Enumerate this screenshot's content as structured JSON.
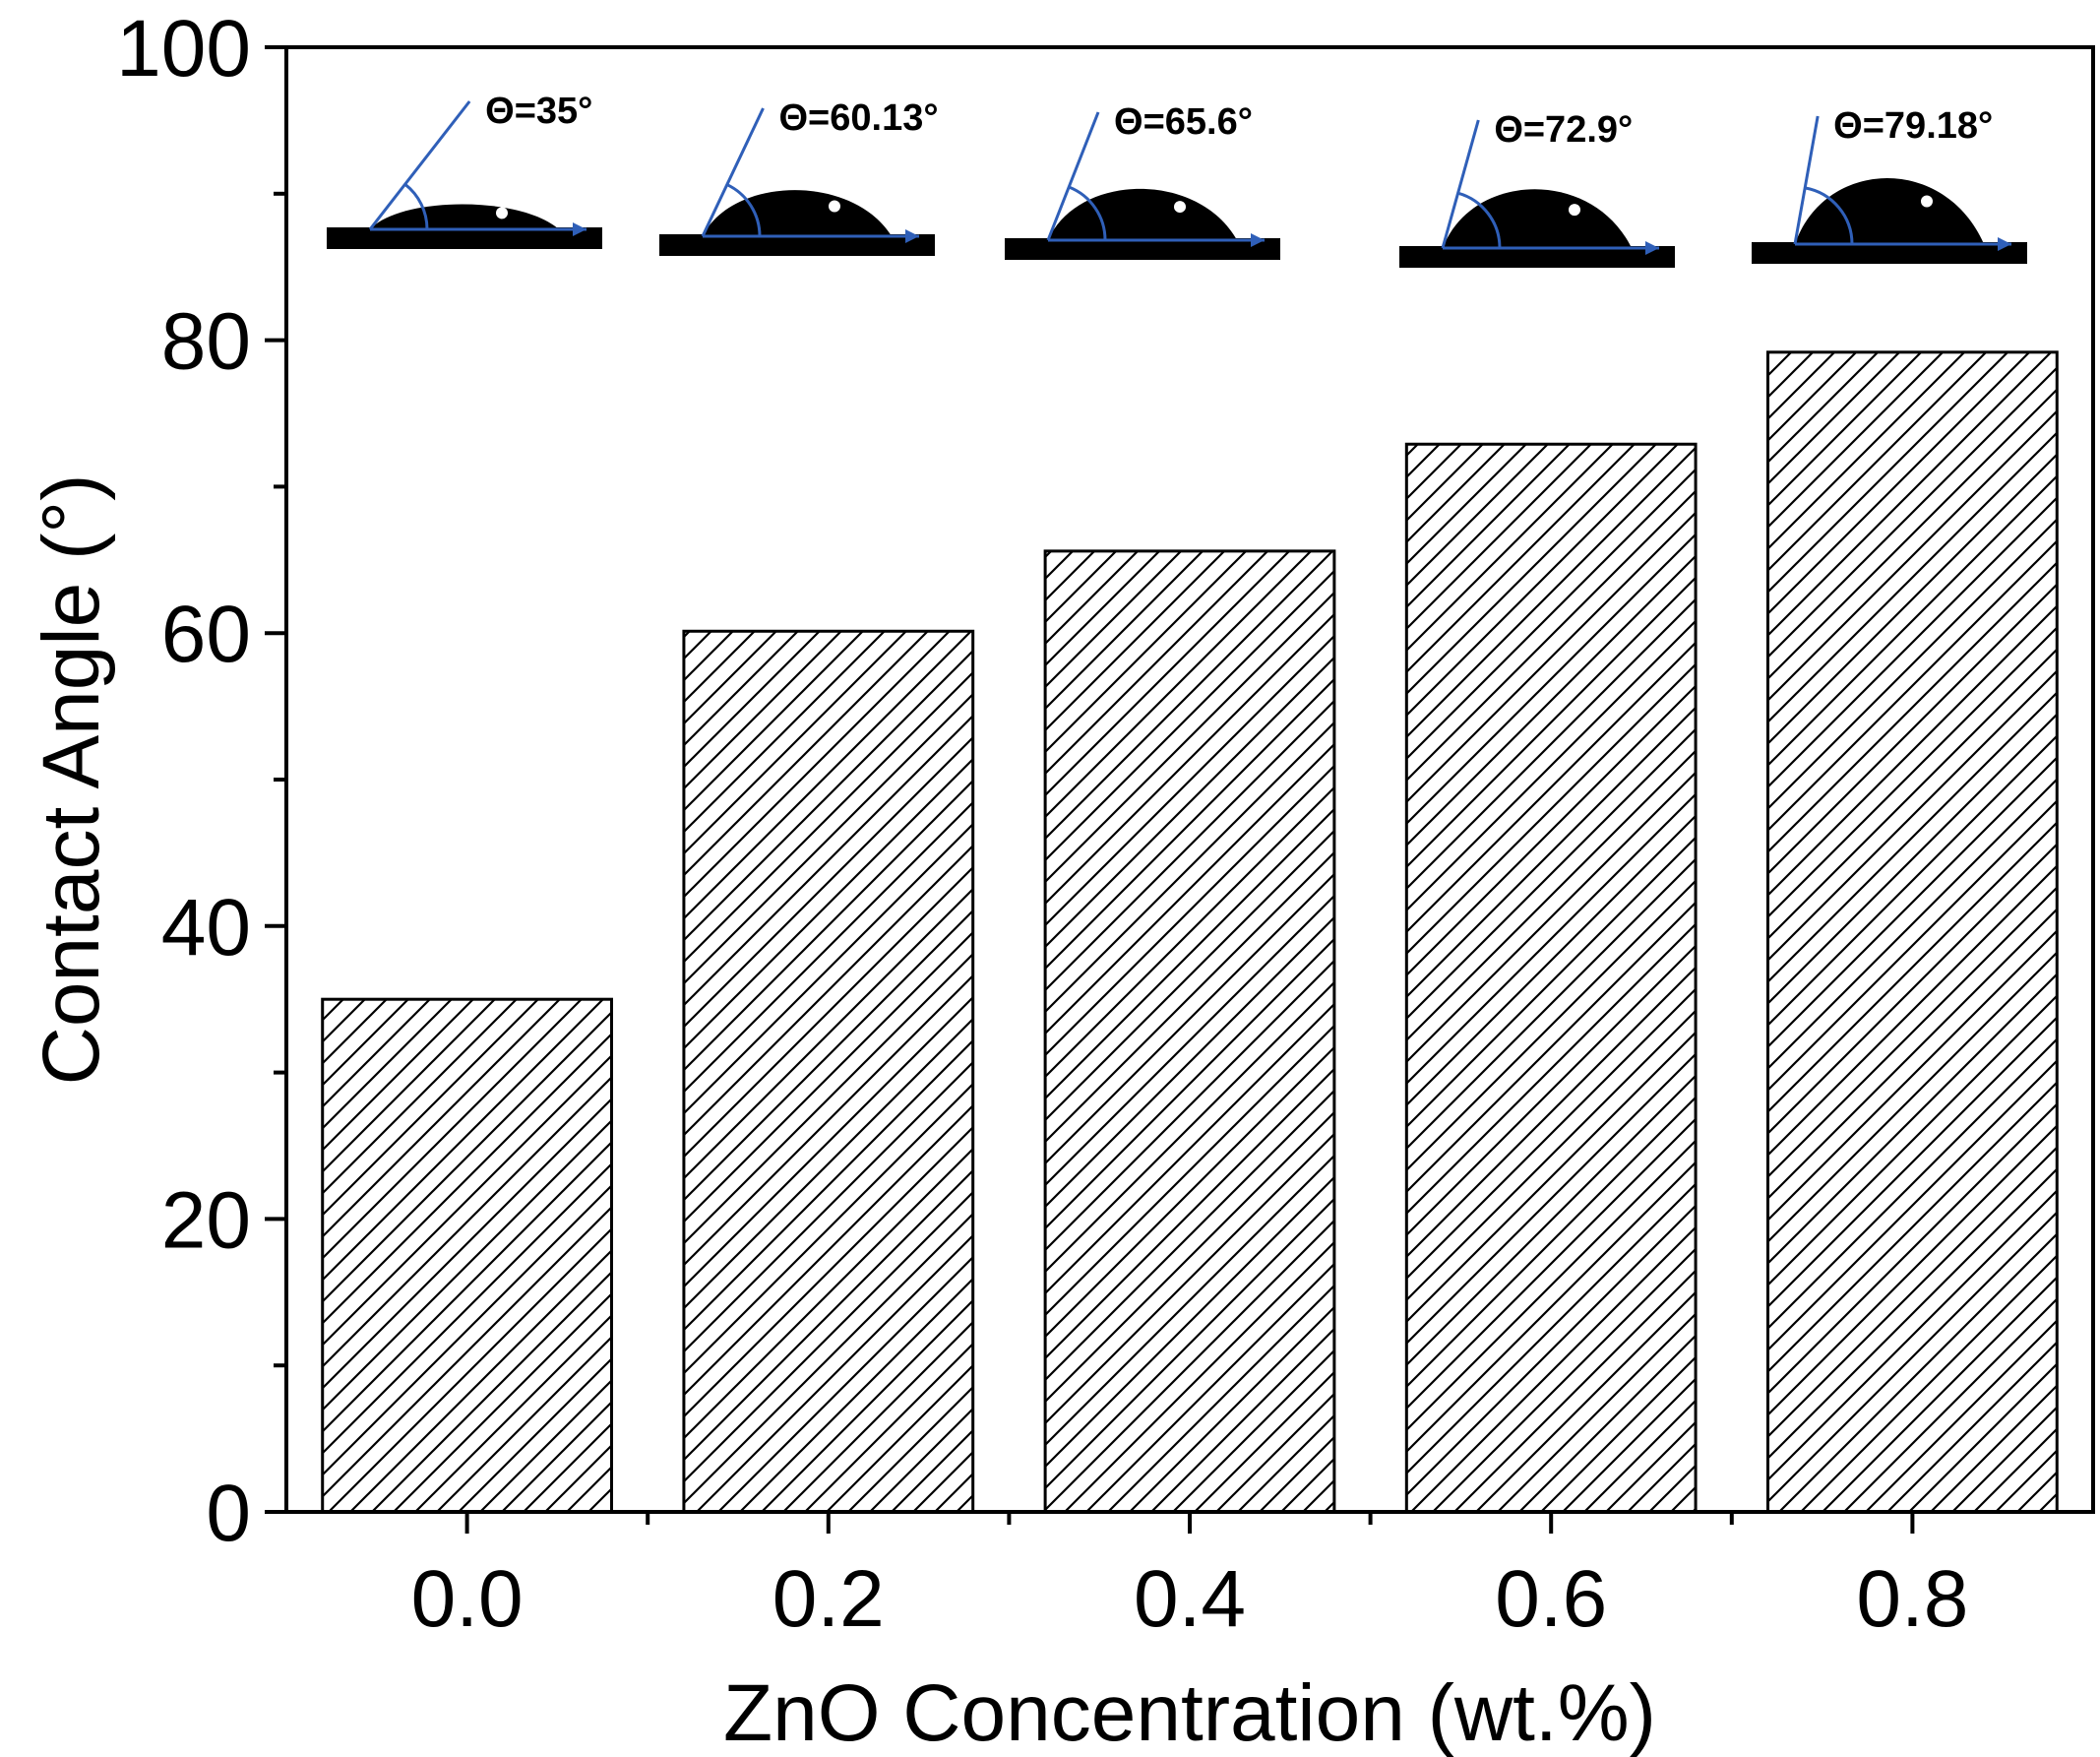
{
  "chart_data": {
    "type": "bar",
    "title": "",
    "xlabel": "ZnO Concentration (wt.%)",
    "ylabel": "Contact Angle (°)",
    "categories": [
      "0.0",
      "0.2",
      "0.4",
      "0.6",
      "0.8"
    ],
    "values": [
      35,
      60.13,
      65.6,
      72.9,
      79.18
    ],
    "ylim": [
      0,
      100
    ],
    "yticks": [
      0,
      20,
      40,
      60,
      80,
      100
    ],
    "yticks_minor": [
      10,
      30,
      50,
      70,
      90
    ],
    "grid": false,
    "legend": "none",
    "bar_fill": "hatched",
    "insets": [
      {
        "category": "0.0",
        "label": "Θ=35°",
        "angle": 35
      },
      {
        "category": "0.2",
        "label": "Θ=60.13°",
        "angle": 60.13
      },
      {
        "category": "0.4",
        "label": "Θ=65.6°",
        "angle": 65.6
      },
      {
        "category": "0.6",
        "label": "Θ=72.9°",
        "angle": 72.9
      },
      {
        "category": "0.8",
        "label": "Θ=79.18°",
        "angle": 79.18
      }
    ],
    "colors": {
      "axis": "#000000",
      "bar_edge": "#000000",
      "bar_fill": "#ffffff",
      "hatch": "#000000",
      "annotation": "#2f5fb8",
      "droplet": "#000000"
    }
  }
}
